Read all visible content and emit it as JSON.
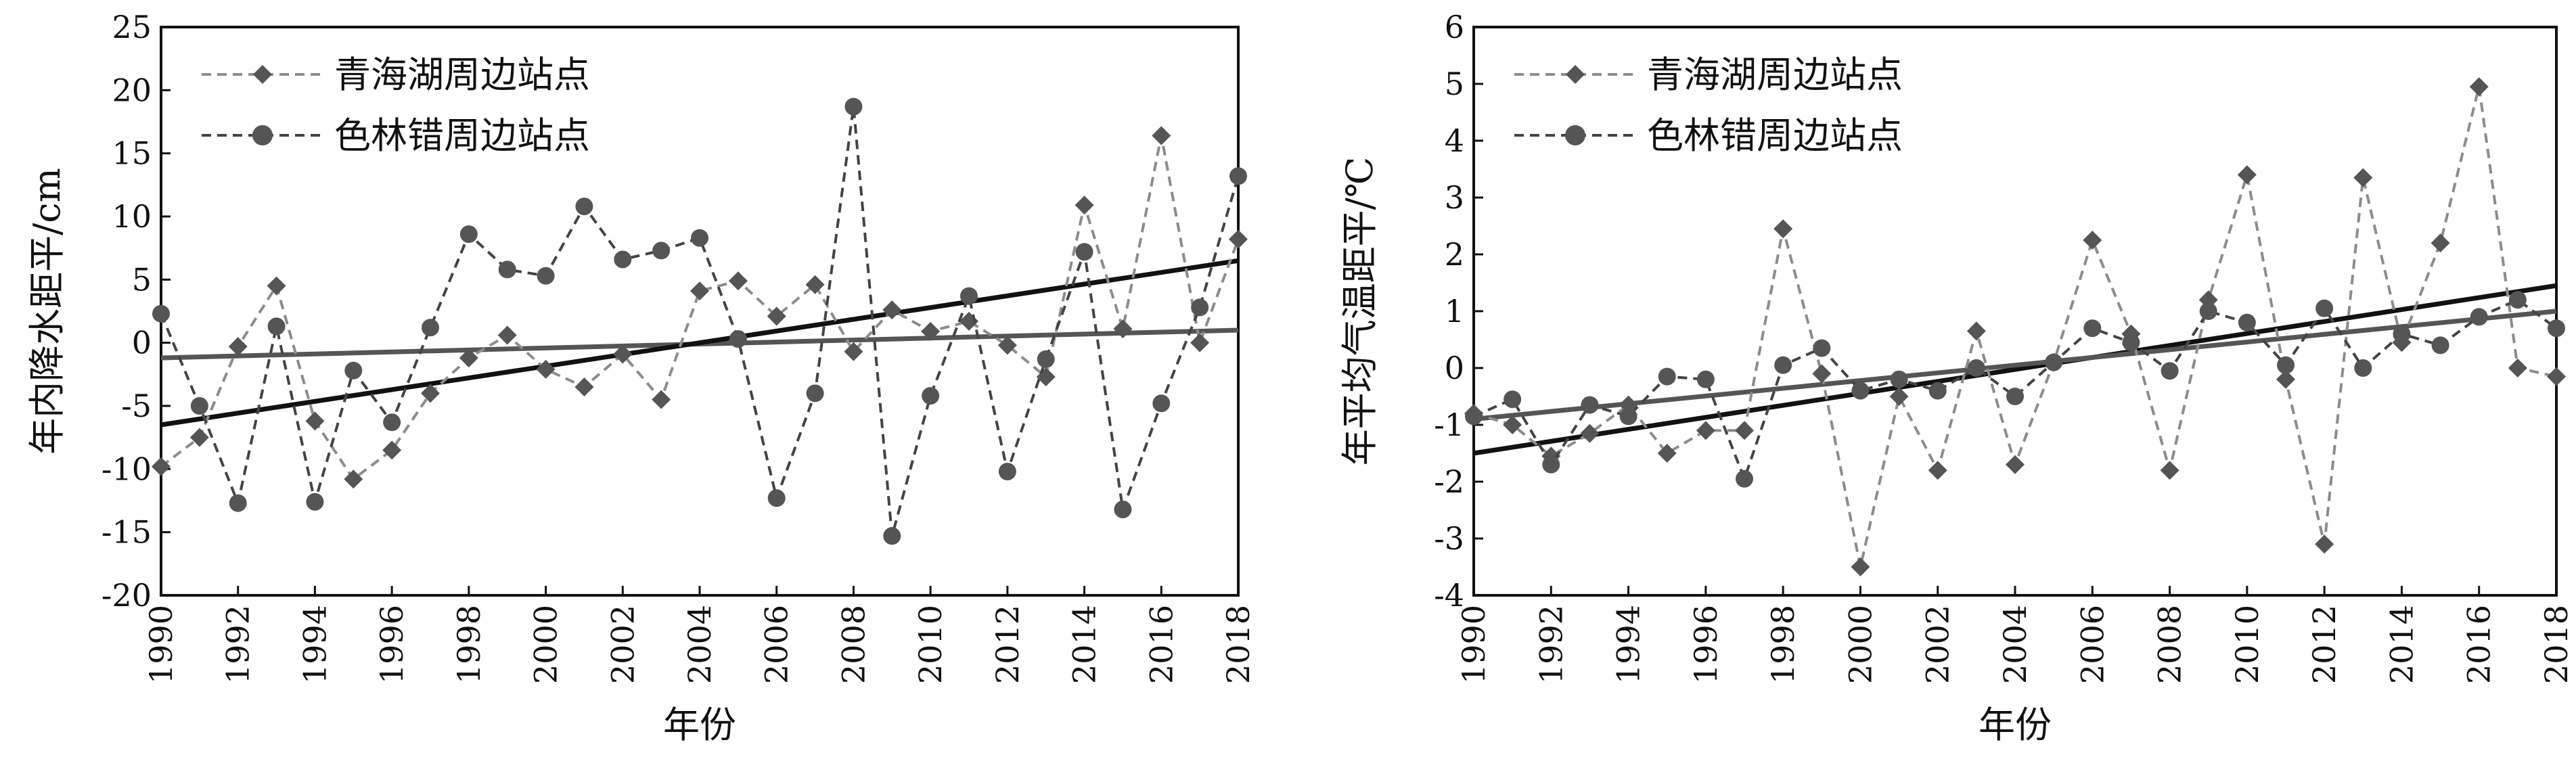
{
  "chart_data": [
    {
      "type": "line",
      "xlabel": "年份",
      "ylabel": "年内降水距平/cm",
      "xlim": [
        1990,
        2018
      ],
      "ylim": [
        -20,
        25
      ],
      "x_ticks": [
        1990,
        1992,
        1994,
        1996,
        1998,
        2000,
        2002,
        2004,
        2006,
        2008,
        2010,
        2012,
        2014,
        2016,
        2018
      ],
      "y_ticks": [
        -20,
        -15,
        -10,
        -5,
        0,
        5,
        10,
        15,
        20,
        25
      ],
      "legend_position": "top-left",
      "x": [
        1990,
        1991,
        1992,
        1993,
        1994,
        1995,
        1996,
        1997,
        1998,
        1999,
        2000,
        2001,
        2002,
        2003,
        2004,
        2005,
        2006,
        2007,
        2008,
        2009,
        2010,
        2011,
        2012,
        2013,
        2014,
        2015,
        2016,
        2017,
        2018
      ],
      "series": [
        {
          "name": "青海湖周边站点",
          "marker": "diamond",
          "line": "dashed",
          "color": "#8c8c8c",
          "values": [
            -9.8,
            -7.5,
            -0.3,
            4.5,
            -6.2,
            -10.8,
            -8.5,
            -4.0,
            -1.2,
            0.6,
            -2.1,
            -3.5,
            -0.9,
            -4.5,
            4.1,
            4.9,
            2.1,
            4.6,
            -0.7,
            2.6,
            0.9,
            1.7,
            -0.2,
            -2.7,
            10.9,
            1.1,
            16.4,
            0.0,
            8.2
          ]
        },
        {
          "name": "色林错周边站点",
          "marker": "circle",
          "line": "dashed",
          "color": "#444444",
          "values": [
            2.3,
            -5.0,
            -12.7,
            1.3,
            -12.6,
            -2.2,
            -6.3,
            1.2,
            8.6,
            5.8,
            5.3,
            10.8,
            6.6,
            7.3,
            8.3,
            0.3,
            -12.3,
            -4.0,
            18.7,
            -15.3,
            -4.2,
            3.7,
            -10.2,
            -1.3,
            7.2,
            -13.2,
            -4.8,
            2.8,
            13.2
          ]
        }
      ],
      "trendlines": [
        {
          "series": "青海湖周边站点",
          "color": "#555555",
          "start": [
            1990,
            -1.2
          ],
          "end": [
            2018,
            1.0
          ]
        },
        {
          "series": "色林错周边站点",
          "color": "#111111",
          "start": [
            1990,
            -6.5
          ],
          "end": [
            2018,
            6.5
          ]
        }
      ]
    },
    {
      "type": "line",
      "xlabel": "年份",
      "ylabel": "年平均气温距平/℃",
      "xlim": [
        1990,
        2018
      ],
      "ylim": [
        -4,
        6
      ],
      "x_ticks": [
        1990,
        1992,
        1994,
        1996,
        1998,
        2000,
        2002,
        2004,
        2006,
        2008,
        2010,
        2012,
        2014,
        2016,
        2018
      ],
      "y_ticks": [
        -4,
        -3,
        -2,
        -1,
        0,
        1,
        2,
        3,
        4,
        5,
        6
      ],
      "legend_position": "top-left",
      "x": [
        1990,
        1991,
        1992,
        1993,
        1994,
        1995,
        1996,
        1997,
        1998,
        1999,
        2000,
        2001,
        2002,
        2003,
        2004,
        2005,
        2006,
        2007,
        2008,
        2009,
        2010,
        2011,
        2012,
        2013,
        2014,
        2015,
        2016,
        2017,
        2018
      ],
      "series": [
        {
          "name": "青海湖周边站点",
          "marker": "diamond",
          "line": "dashed",
          "color": "#8c8c8c",
          "values": [
            -0.8,
            -1.0,
            -1.55,
            -1.15,
            -0.65,
            -1.5,
            -1.1,
            -1.1,
            2.45,
            -0.1,
            -3.5,
            -0.5,
            -1.8,
            0.65,
            -1.7,
            0.1,
            2.25,
            0.6,
            -1.8,
            1.2,
            3.4,
            -0.2,
            -3.1,
            3.35,
            0.45,
            2.2,
            4.95,
            0.0,
            -0.15
          ]
        },
        {
          "name": "色林错周边站点",
          "marker": "circle",
          "line": "dashed",
          "color": "#444444",
          "values": [
            -0.85,
            -0.55,
            -1.7,
            -0.65,
            -0.85,
            -0.15,
            -0.2,
            -1.95,
            0.05,
            0.35,
            -0.4,
            -0.2,
            -0.4,
            0.0,
            -0.5,
            0.1,
            0.7,
            0.45,
            -0.05,
            1.0,
            0.8,
            0.05,
            1.05,
            0.0,
            0.6,
            0.4,
            0.9,
            1.2,
            0.7
          ]
        }
      ],
      "trendlines": [
        {
          "series": "青海湖周边站点",
          "color": "#111111",
          "start": [
            1990,
            -1.5
          ],
          "end": [
            2018,
            1.45
          ]
        },
        {
          "series": "色林错周边站点",
          "color": "#555555",
          "start": [
            1990,
            -0.9
          ],
          "end": [
            2018,
            1.0
          ]
        }
      ]
    }
  ]
}
